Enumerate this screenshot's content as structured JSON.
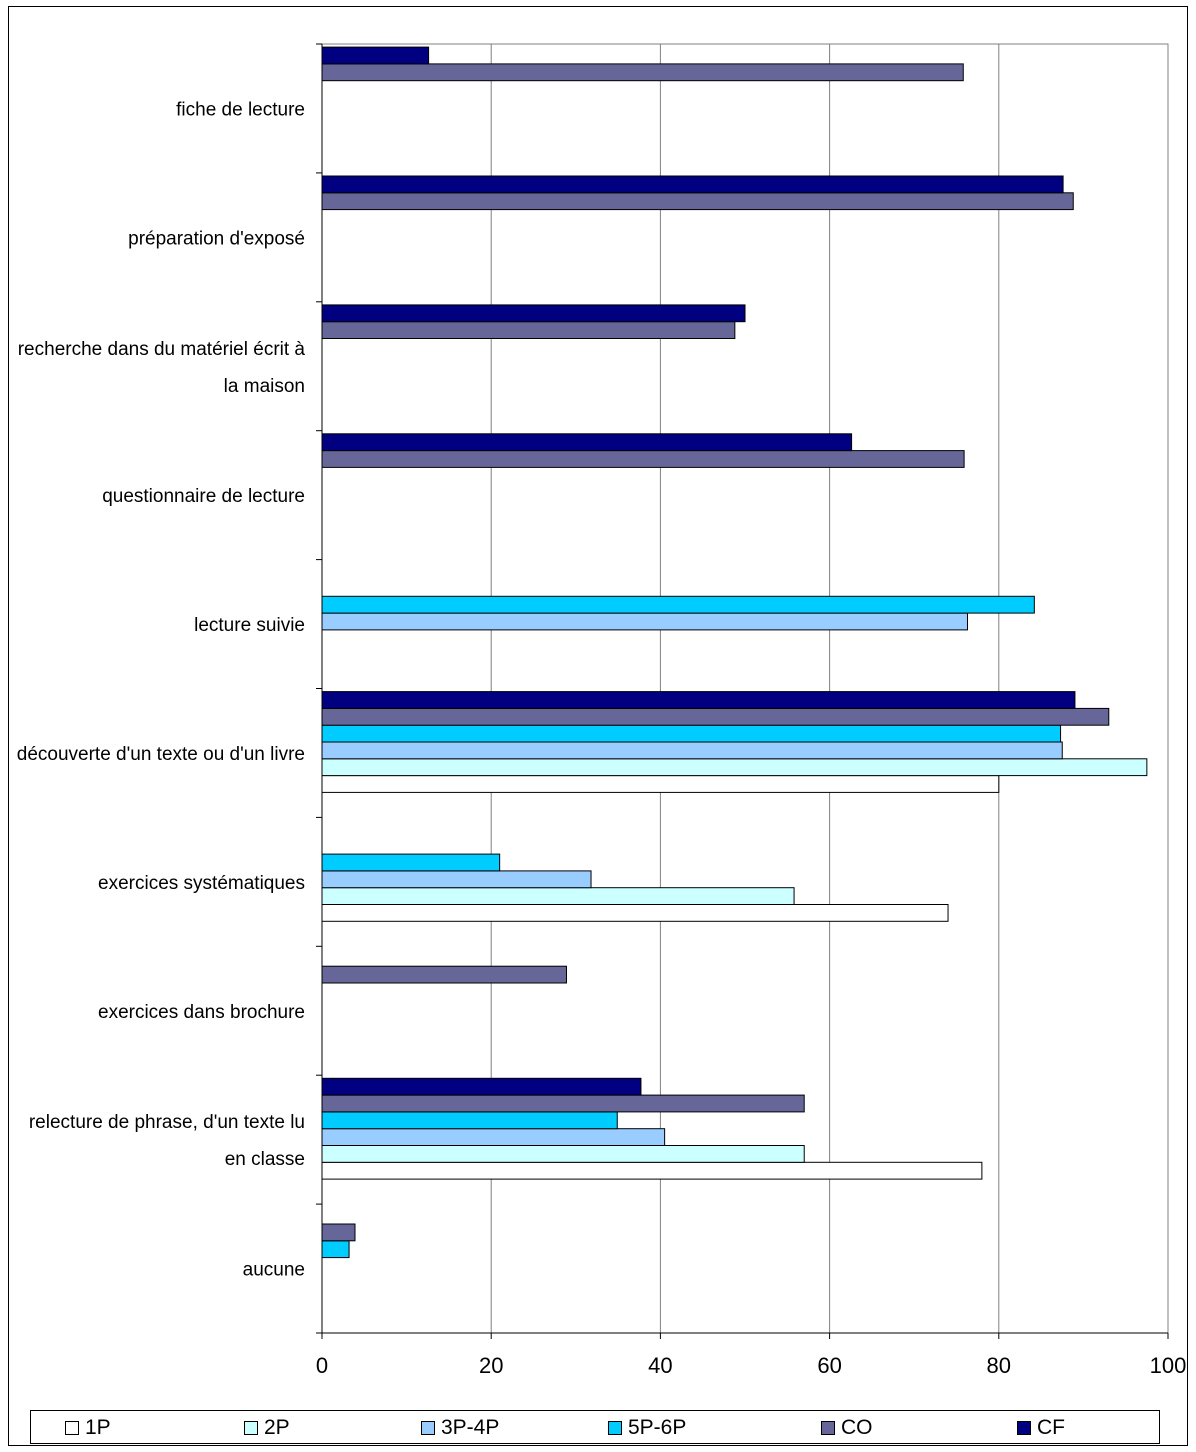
{
  "chart_data": {
    "type": "bar",
    "orientation": "horizontal",
    "categories": [
      "fiche de lecture",
      "préparation d'exposé",
      "recherche dans du matériel écrit à la maison",
      "questionnaire de lecture",
      "lecture suivie",
      "découverte d'un texte ou d'un livre",
      "exercices systématiques",
      "exercices dans brochure",
      "relecture de phrase, d'un texte lu en classe",
      "aucune"
    ],
    "category_lines": [
      [
        "fiche de lecture"
      ],
      [
        "préparation d'exposé"
      ],
      [
        "recherche dans du matériel écrit à",
        "la maison"
      ],
      [
        "questionnaire de lecture"
      ],
      [
        "lecture suivie"
      ],
      [
        "découverte d'un texte ou d'un livre"
      ],
      [
        "exercices systématiques"
      ],
      [
        "exercices dans brochure"
      ],
      [
        "relecture de phrase, d'un texte lu",
        "en classe"
      ],
      [
        "aucune"
      ]
    ],
    "series": [
      {
        "name": "1P",
        "color": "#ffffff",
        "values": [
          null,
          null,
          null,
          null,
          null,
          80,
          74,
          null,
          78,
          null
        ]
      },
      {
        "name": "2P",
        "color": "#ccffff",
        "values": [
          null,
          null,
          null,
          null,
          null,
          97.5,
          55.8,
          null,
          57,
          null
        ]
      },
      {
        "name": "3P-4P",
        "color": "#99ccff",
        "values": [
          null,
          null,
          null,
          null,
          76.3,
          87.5,
          31.8,
          null,
          40.5,
          null
        ]
      },
      {
        "name": "5P-6P",
        "color": "#00ccff",
        "values": [
          null,
          null,
          null,
          null,
          84.2,
          87.3,
          21,
          null,
          34.9,
          3.2
        ]
      },
      {
        "name": "CO",
        "color": "#666699",
        "values": [
          75.8,
          88.8,
          48.8,
          75.9,
          null,
          93,
          null,
          28.9,
          57,
          3.9
        ]
      },
      {
        "name": "CF",
        "color": "#000080",
        "values": [
          12.6,
          87.6,
          50,
          62.6,
          null,
          89,
          null,
          null,
          37.7,
          null
        ]
      }
    ],
    "xlim": [
      0,
      100
    ],
    "xticks": [
      0,
      20,
      40,
      60,
      80,
      100
    ],
    "grid": true,
    "legend": "bottom"
  }
}
